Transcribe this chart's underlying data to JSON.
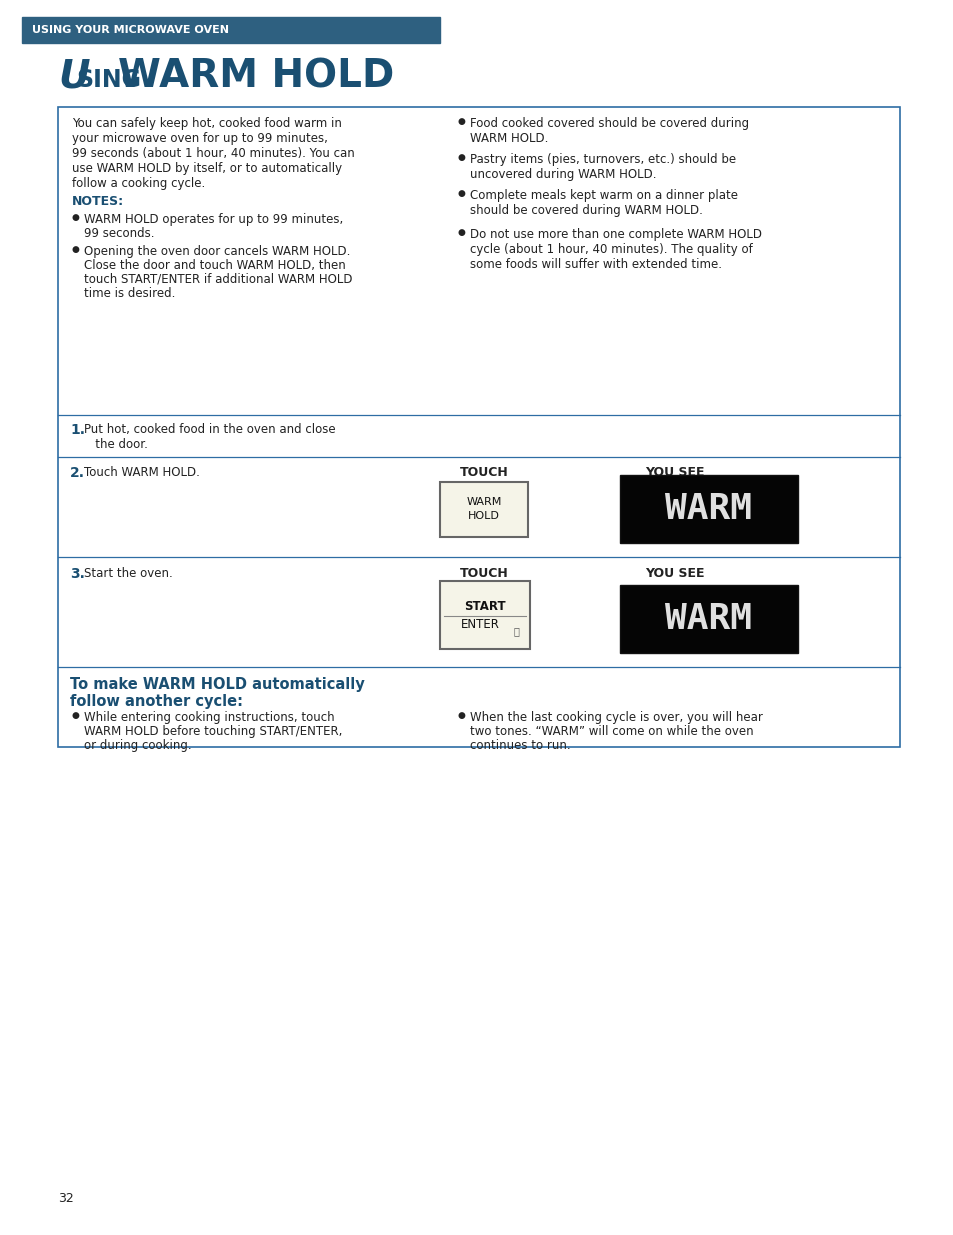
{
  "page_bg": "#ffffff",
  "header_bg": "#2e6080",
  "header_text": "USING YOUR MICROWAVE OVEN",
  "header_text_color": "#ffffff",
  "title_color": "#1a4f72",
  "box_border_color": "#2e6da4",
  "body_color": "#222222",
  "blue_color": "#1a4f72",
  "page_number": "32",
  "intro_lines": [
    "You can safely keep hot, cooked food warm in",
    "your microwave oven for up to 99 minutes,",
    "99 seconds (about 1 hour, 40 minutes). You can",
    "use WARM HOLD by itself, or to automatically",
    "follow a cooking cycle."
  ],
  "notes_label": "NOTES:",
  "left_bullets": [
    [
      "WARM HOLD operates for up to 99 minutes,",
      "99 seconds."
    ],
    [
      "Opening the oven door cancels WARM HOLD.",
      "Close the door and touch WARM HOLD, then",
      "touch START/ENTER if additional WARM HOLD",
      "time is desired."
    ]
  ],
  "right_bullets": [
    [
      "Food cooked covered should be covered during",
      "WARM HOLD."
    ],
    [
      "Pastry items (pies, turnovers, etc.) should be",
      "uncovered during WARM HOLD."
    ],
    [
      "Complete meals kept warm on a dinner plate",
      "should be covered during WARM HOLD."
    ],
    [
      "Do not use more than one complete WARM HOLD",
      "cycle (about 1 hour, 40 minutes). The quality of",
      "some foods will suffer with extended time."
    ]
  ],
  "step1_num": "1.",
  "step1_lines": [
    "Put hot, cooked food in the oven and close",
    "   the door."
  ],
  "step2_num": "2.",
  "step2_text": "Touch WARM HOLD.",
  "step3_num": "3.",
  "step3_text": "Start the oven.",
  "touch_label": "TOUCH",
  "yousee_label": "YOU SEE",
  "btn1_text": "WARM\nHOLD",
  "btn2_line1": "START",
  "btn2_line2": "ENTER",
  "display_text": "WARM",
  "sub_heading_lines": [
    "To make WARM HOLD automatically",
    "follow another cycle:"
  ],
  "sub_left_bullet": [
    "While entering cooking instructions, touch",
    "WARM HOLD before touching START/ENTER,",
    "or during cooking."
  ],
  "sub_right_bullet": [
    "When the last cooking cycle is over, you will hear",
    "two tones. “WARM” will come on while the oven",
    "continues to run."
  ]
}
